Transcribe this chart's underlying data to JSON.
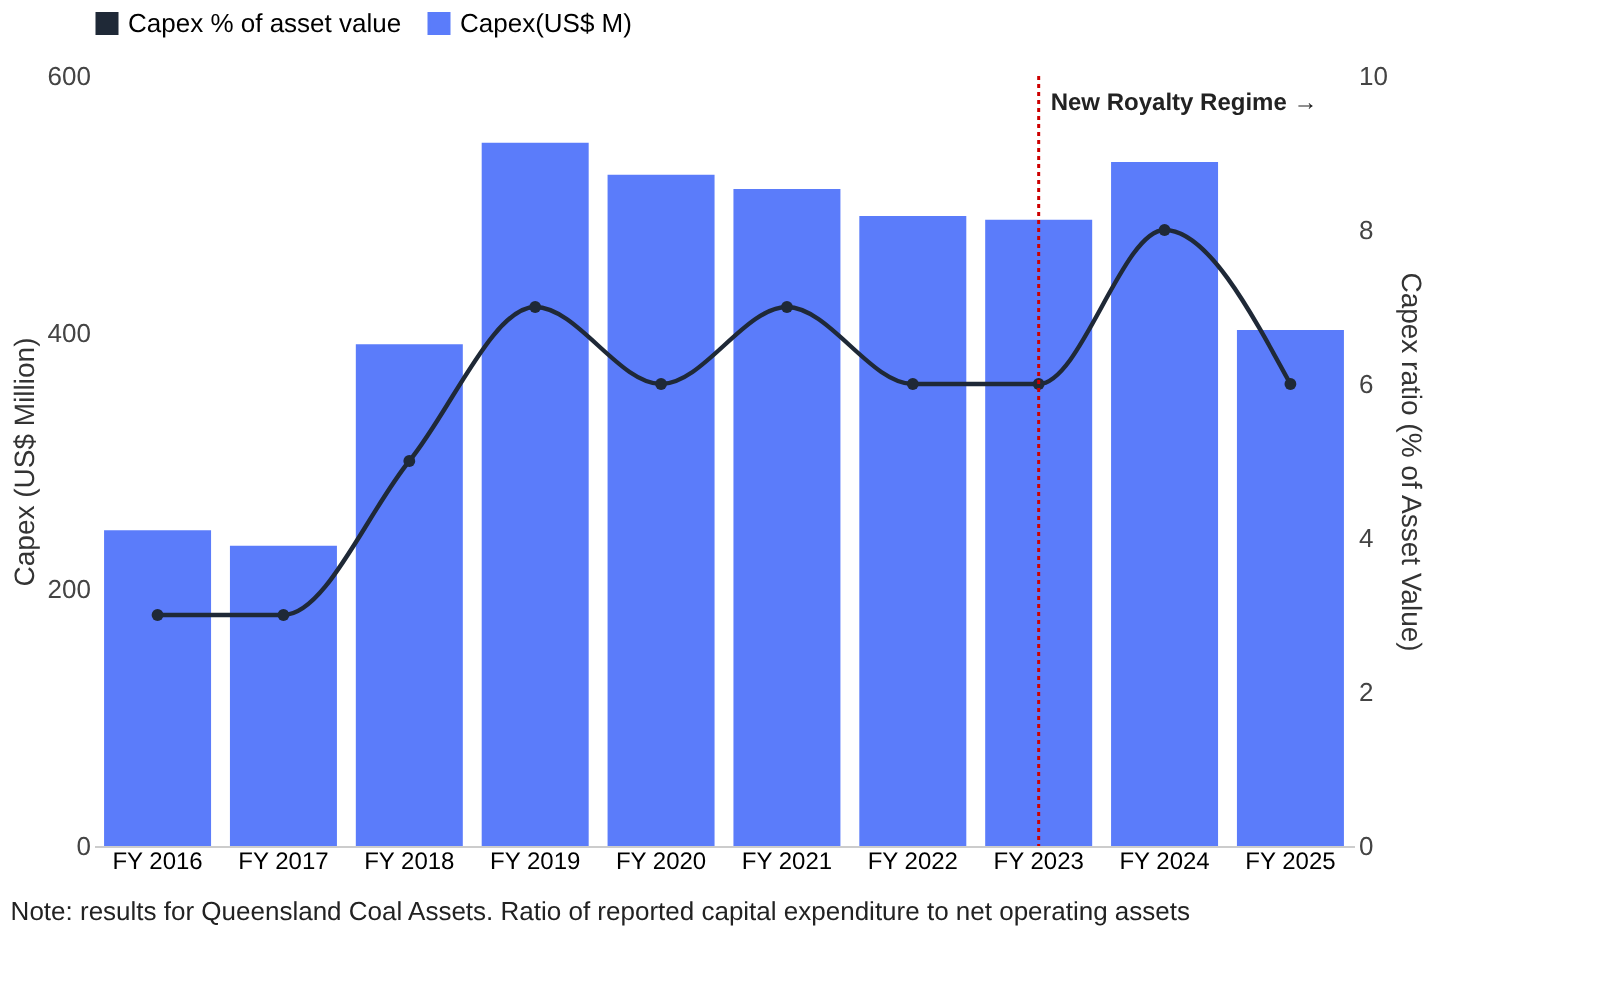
{
  "chart_data": {
    "type": "bar",
    "categories": [
      "FY 2016",
      "FY 2017",
      "FY 2018",
      "FY 2019",
      "FY 2020",
      "FY 2021",
      "FY 2022",
      "FY 2023",
      "FY 2024",
      "FY 2025"
    ],
    "series": [
      {
        "name": "Capex % of asset value",
        "type": "line",
        "axis": "y2",
        "color": "#1f2937",
        "marker": "circle",
        "line_style": "solid",
        "values": [
          3,
          3,
          5,
          7,
          6,
          7,
          6,
          6,
          8,
          6
        ]
      },
      {
        "name": "Capex(US$ M)",
        "color": "#5b7cfa",
        "values": [
          246,
          234,
          391,
          548,
          523,
          512,
          491,
          488,
          533,
          402
        ]
      }
    ],
    "ylabel": "Capex (US$ Million)",
    "y2label": "Capex ratio (% of Asset Value)",
    "ylim": [
      0,
      600
    ],
    "yticks": [
      0,
      200,
      400,
      600
    ],
    "y2lim": [
      0,
      10
    ],
    "y2ticks": [
      0,
      2,
      4,
      6,
      8,
      10
    ],
    "ref_lines": [
      {
        "axis": "x",
        "value": "FY 2023",
        "label": "New Royalty Regime →",
        "color": "#cc0000",
        "line_style": "dotted"
      }
    ],
    "annotations": [
      "Note: results for Queensland Coal Assets. Ratio of reported capital expenditure to net operating assets"
    ],
    "legend": "top",
    "grid": false
  }
}
